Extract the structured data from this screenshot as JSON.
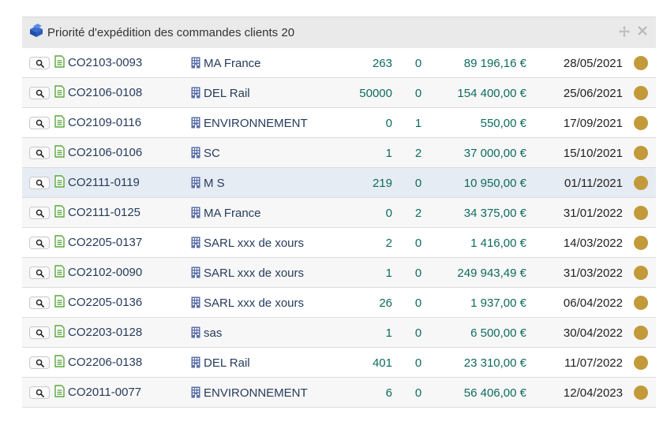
{
  "widget": {
    "title": "Priorité d'expédition des commandes clients 20",
    "title_icon": "box-stack-icon",
    "actions": [
      "move-icon",
      "close-icon"
    ]
  },
  "colors": {
    "header_bg": "#eaeaea",
    "link": "#263c5c",
    "number": "#0e6b5f",
    "status": "#c29a3a",
    "highlight_row": "#e6ecf3"
  },
  "rows": [
    {
      "ref": "CO2103-0093",
      "client": "MA France",
      "qty": "263",
      "qty2": "0",
      "amount": "89 196,16 €",
      "date": "28/05/2021"
    },
    {
      "ref": "CO2106-0108",
      "client": "DEL Rail",
      "qty": "50000",
      "qty2": "0",
      "amount": "154 400,00 €",
      "date": "25/06/2021"
    },
    {
      "ref": "CO2109-0116",
      "client": "ENVIRONNEMENT",
      "qty": "0",
      "qty2": "1",
      "amount": "550,00 €",
      "date": "17/09/2021"
    },
    {
      "ref": "CO2106-0106",
      "client": "SC",
      "qty": "1",
      "qty2": "2",
      "amount": "37 000,00 €",
      "date": "15/10/2021"
    },
    {
      "ref": "CO2111-0119",
      "client": "M S",
      "qty": "219",
      "qty2": "0",
      "amount": "10 950,00 €",
      "date": "01/11/2021"
    },
    {
      "ref": "CO2111-0125",
      "client": "MA France",
      "qty": "0",
      "qty2": "2",
      "amount": "34 375,00 €",
      "date": "31/01/2022"
    },
    {
      "ref": "CO2205-0137",
      "client": "SARL xxx de xours",
      "qty": "2",
      "qty2": "0",
      "amount": "1 416,00 €",
      "date": "14/03/2022"
    },
    {
      "ref": "CO2102-0090",
      "client": "SARL xxx de xours",
      "qty": "1",
      "qty2": "0",
      "amount": "249 943,49 €",
      "date": "31/03/2022"
    },
    {
      "ref": "CO2205-0136",
      "client": "SARL xxx de xours",
      "qty": "26",
      "qty2": "0",
      "amount": "1 937,00 €",
      "date": "06/04/2022"
    },
    {
      "ref": "CO2203-0128",
      "client": "sas",
      "qty": "1",
      "qty2": "0",
      "amount": "6 500,00 €",
      "date": "30/04/2022"
    },
    {
      "ref": "CO2206-0138",
      "client": "DEL Rail",
      "qty": "401",
      "qty2": "0",
      "amount": "23 310,00 €",
      "date": "11/07/2022"
    },
    {
      "ref": "CO2011-0077",
      "client": "ENVIRONNEMENT",
      "qty": "6",
      "qty2": "0",
      "amount": "56 406,00 €",
      "date": "12/04/2023"
    }
  ]
}
